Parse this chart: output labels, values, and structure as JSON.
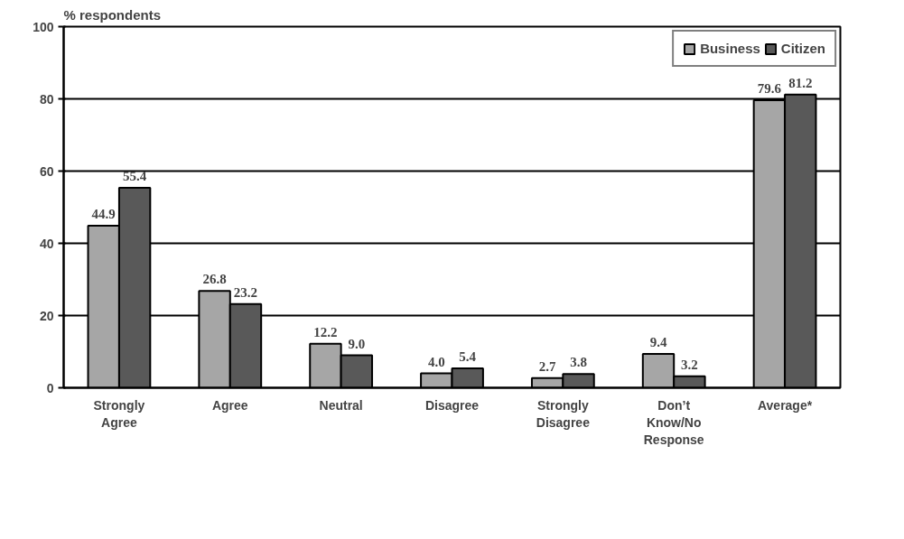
{
  "chart_data": {
    "type": "bar",
    "ylabel": "% respondents",
    "categories": [
      "Strongly\nAgree",
      "Agree",
      "Neutral",
      "Disagree",
      "Strongly\nDisagree",
      "Don’t\nKnow/No\nResponse",
      "Average*"
    ],
    "series": [
      {
        "name": "Business",
        "color": "#a6a6a6",
        "values": [
          44.9,
          26.8,
          12.2,
          4.0,
          2.7,
          9.4,
          79.6
        ],
        "value_labels": [
          "44.9",
          "26.8",
          "12.2",
          "4.0",
          "2.7",
          "9.4",
          "79.6"
        ]
      },
      {
        "name": "Citizen",
        "color": "#595959",
        "values": [
          55.4,
          23.2,
          9.0,
          5.4,
          3.8,
          3.2,
          81.2
        ],
        "value_labels": [
          "55.4",
          "23.2",
          "9.0",
          "5.4",
          "3.8",
          "3.2",
          "81.2"
        ]
      }
    ],
    "ylim": [
      0,
      100
    ],
    "yticks": [
      0,
      20,
      40,
      60,
      80,
      100
    ],
    "grid": "y",
    "legend": "top right"
  }
}
